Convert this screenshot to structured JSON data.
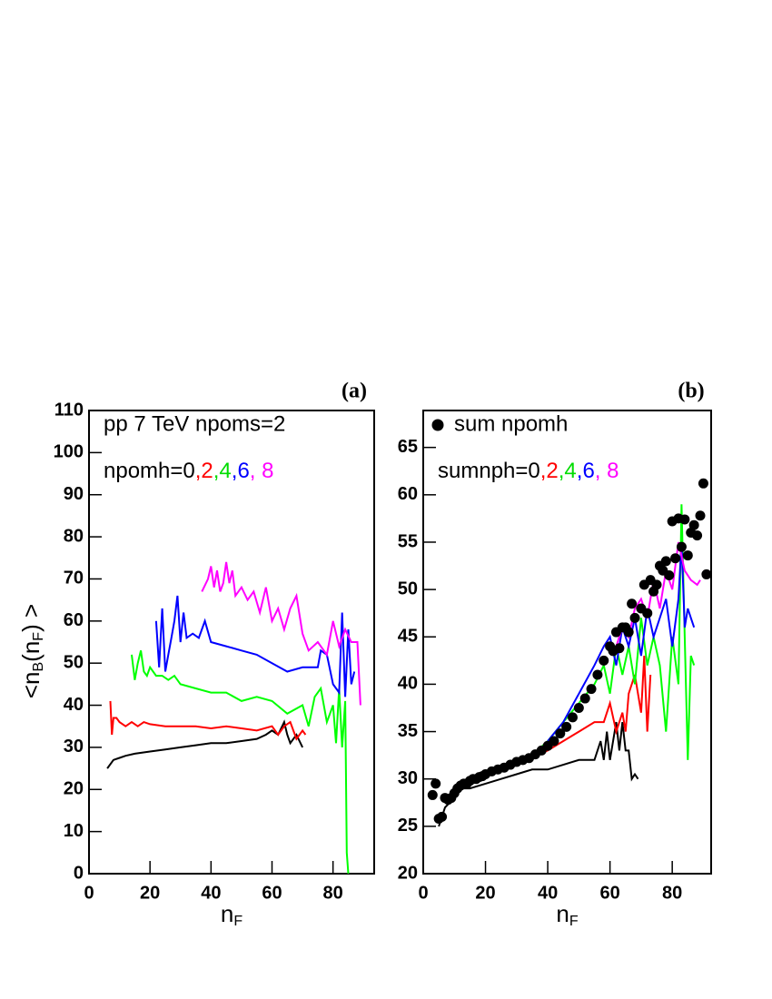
{
  "chart_data": [
    {
      "type": "line",
      "panel_label": "(a)",
      "xlabel_parts": [
        "n",
        "F"
      ],
      "ylabel_parts": [
        "<n",
        "B",
        "(n",
        "F",
        ") >"
      ],
      "xlim": [
        0,
        93.5
      ],
      "ylim": [
        0,
        110
      ],
      "xticks": [
        0,
        20,
        40,
        60,
        80
      ],
      "yticks": [
        0,
        10,
        20,
        30,
        40,
        50,
        60,
        70,
        80,
        90,
        100,
        110
      ],
      "annotation": "pp 7 TeV npoms=2",
      "legend_parts": [
        {
          "text": "npomh=0",
          "color": "#000000"
        },
        {
          "text": ",2",
          "color": "#ff0000"
        },
        {
          "text": ",4",
          "color": "#00dd00"
        },
        {
          "text": ",6",
          "color": "#0000ff"
        },
        {
          "text": ", 8",
          "color": "#ff00ff"
        }
      ],
      "series": [
        {
          "color": "#000000",
          "x": [
            6,
            8,
            10,
            12,
            15,
            20,
            25,
            30,
            35,
            40,
            45,
            50,
            55,
            58,
            60,
            62,
            64,
            65,
            66,
            68,
            70
          ],
          "values": [
            25,
            27,
            27.5,
            28,
            28.5,
            29,
            29.5,
            30,
            30.5,
            31,
            31,
            31.5,
            32,
            33,
            34,
            33,
            36,
            33,
            31,
            33,
            30
          ]
        },
        {
          "color": "#ff0000",
          "x": [
            7,
            7.5,
            8,
            9,
            10,
            12,
            14,
            16,
            18,
            20,
            25,
            30,
            35,
            40,
            45,
            50,
            55,
            60,
            62,
            64,
            66,
            68,
            70,
            71
          ],
          "values": [
            41,
            33,
            37,
            37,
            36,
            35,
            36,
            35,
            36,
            35.5,
            35,
            35,
            35,
            34.5,
            35,
            34.5,
            34,
            35,
            33,
            35,
            36,
            32,
            34,
            33
          ]
        },
        {
          "color": "#00ff00",
          "x": [
            14,
            15,
            16,
            17,
            18,
            19,
            20,
            22,
            24,
            26,
            28,
            30,
            35,
            40,
            45,
            50,
            55,
            60,
            65,
            70,
            72,
            74,
            76,
            78,
            80,
            81,
            82,
            83,
            84,
            84.5,
            85
          ],
          "values": [
            52,
            46,
            50,
            53,
            48,
            47,
            49,
            47,
            47,
            46,
            47,
            45,
            44,
            43,
            43,
            41,
            42,
            41,
            38,
            40,
            35,
            42,
            44,
            36,
            40,
            31,
            44,
            30,
            41,
            5,
            0
          ]
        },
        {
          "color": "#0000ff",
          "x": [
            22,
            23,
            24,
            25,
            26,
            27,
            28,
            29,
            30,
            31,
            32,
            34,
            36,
            38,
            40,
            45,
            50,
            55,
            60,
            65,
            70,
            75,
            76,
            78,
            80,
            82,
            83,
            84,
            85,
            86,
            87
          ],
          "values": [
            60,
            49,
            63,
            48,
            52,
            56,
            60,
            66,
            55,
            62,
            56,
            57,
            56,
            60,
            55,
            54,
            53,
            52,
            50,
            48,
            49,
            49,
            53,
            52,
            45,
            43,
            62,
            42,
            58,
            45,
            48
          ]
        },
        {
          "color": "#ff00ff",
          "x": [
            37,
            39,
            40,
            41,
            42,
            43,
            44,
            45,
            46,
            47,
            48,
            50,
            52,
            54,
            56,
            58,
            60,
            62,
            64,
            66,
            68,
            70,
            72,
            75,
            78,
            80,
            82,
            84,
            86,
            88,
            89
          ],
          "values": [
            67,
            70,
            73,
            68,
            72,
            67,
            69,
            74,
            69,
            72,
            66,
            68,
            65,
            67,
            62,
            68,
            60,
            63,
            58,
            63,
            66,
            57,
            53,
            55,
            52,
            60,
            54,
            58,
            55,
            55,
            40
          ]
        }
      ]
    },
    {
      "type": "line",
      "panel_label": "(b)",
      "xlabel_parts": [
        "n",
        "F"
      ],
      "xlim": [
        0,
        92.5
      ],
      "ylim": [
        20,
        68.9
      ],
      "xticks": [
        0,
        20,
        40,
        60,
        80
      ],
      "yticks": [
        20,
        25,
        30,
        35,
        40,
        45,
        50,
        55,
        60,
        65
      ],
      "annotation": "sum npomh",
      "legend_parts": [
        {
          "text": "sumnph=0",
          "color": "#000000"
        },
        {
          "text": ",2",
          "color": "#ff0000"
        },
        {
          "text": ",4",
          "color": "#00dd00"
        },
        {
          "text": ",6",
          "color": "#0000ff"
        },
        {
          "text": ", 8",
          "color": "#ff00ff"
        }
      ],
      "series": [
        {
          "color": "#000000",
          "x": [
            5,
            7,
            10,
            12,
            15,
            20,
            25,
            30,
            35,
            40,
            45,
            50,
            55,
            57,
            58,
            59,
            60,
            62,
            63,
            64,
            65,
            66,
            67,
            68,
            69
          ],
          "values": [
            25,
            27,
            28,
            29,
            29,
            29.5,
            30,
            30.5,
            31,
            31,
            31.5,
            32,
            32,
            34,
            32,
            35,
            32,
            36,
            33,
            36,
            33,
            33,
            30,
            30.5,
            30
          ]
        },
        {
          "color": "#ff0000",
          "x": [
            20,
            30,
            40,
            45,
            50,
            55,
            58,
            60,
            62,
            64,
            65,
            66,
            68,
            70,
            71,
            72,
            73
          ],
          "values": [
            30.5,
            31.5,
            33,
            34,
            35,
            36,
            36,
            38,
            35,
            37,
            35,
            39,
            41,
            37,
            43,
            35,
            41
          ]
        },
        {
          "color": "#00ff00",
          "x": [
            35,
            40,
            45,
            50,
            55,
            58,
            60,
            62,
            64,
            66,
            68,
            70,
            72,
            74,
            76,
            78,
            80,
            82,
            83,
            84,
            85,
            86,
            87
          ],
          "values": [
            32.5,
            34,
            36,
            38,
            40,
            42,
            39,
            44,
            41,
            44,
            40,
            47,
            42,
            45,
            42,
            35,
            45,
            40,
            59,
            45,
            32,
            43,
            42
          ]
        },
        {
          "color": "#0000ff",
          "x": [
            40,
            45,
            50,
            55,
            58,
            60,
            62,
            64,
            66,
            68,
            70,
            72,
            74,
            76,
            78,
            80,
            82,
            83,
            84,
            85,
            86,
            87
          ],
          "values": [
            34,
            36,
            39,
            42,
            44,
            45,
            42,
            46,
            44,
            47,
            43,
            48,
            45,
            47,
            49,
            44,
            49,
            55,
            46,
            48,
            47,
            46
          ]
        },
        {
          "color": "#ff00ff",
          "x": [
            62,
            64,
            66,
            68,
            70,
            72,
            74,
            76,
            78,
            80,
            82,
            84,
            86,
            88,
            89
          ],
          "values": [
            44,
            46,
            45,
            48,
            49,
            47,
            51,
            48,
            52,
            50,
            55,
            52,
            51,
            50.5,
            51
          ]
        },
        {
          "type": "scatter",
          "color": "#000000",
          "x": [
            3,
            4,
            5,
            6,
            7,
            8,
            9,
            10,
            11,
            12,
            13,
            14,
            15,
            16,
            17,
            18,
            19,
            20,
            22,
            24,
            26,
            28,
            30,
            32,
            34,
            36,
            38,
            40,
            42,
            44,
            46,
            48,
            50,
            52,
            54,
            56,
            58,
            60,
            61,
            62,
            63,
            64,
            65,
            66,
            67,
            68,
            70,
            71,
            72,
            73,
            74,
            75,
            76,
            77,
            78,
            79,
            80,
            81,
            82,
            83,
            84,
            85,
            86,
            87,
            88,
            89,
            90,
            91
          ],
          "values": [
            28.3,
            29.5,
            25.8,
            26,
            28,
            27.8,
            28,
            28.5,
            29,
            29.3,
            29.5,
            29.5,
            29.8,
            30,
            30,
            30.2,
            30.3,
            30.5,
            30.8,
            31,
            31.2,
            31.5,
            31.8,
            32,
            32.2,
            32.6,
            33,
            33.5,
            34,
            34.8,
            35.5,
            36.5,
            37.5,
            38.5,
            39.5,
            41,
            42.5,
            44,
            43.5,
            45.5,
            43.8,
            46,
            46,
            45.5,
            48.5,
            47,
            48,
            50.5,
            47.5,
            51,
            49.8,
            50.5,
            52.5,
            52,
            53,
            51.5,
            57.2,
            53.3,
            57.5,
            54.5,
            57.4,
            53.6,
            56,
            56.8,
            55.7,
            57.8,
            61.2,
            51.6
          ]
        }
      ]
    }
  ]
}
